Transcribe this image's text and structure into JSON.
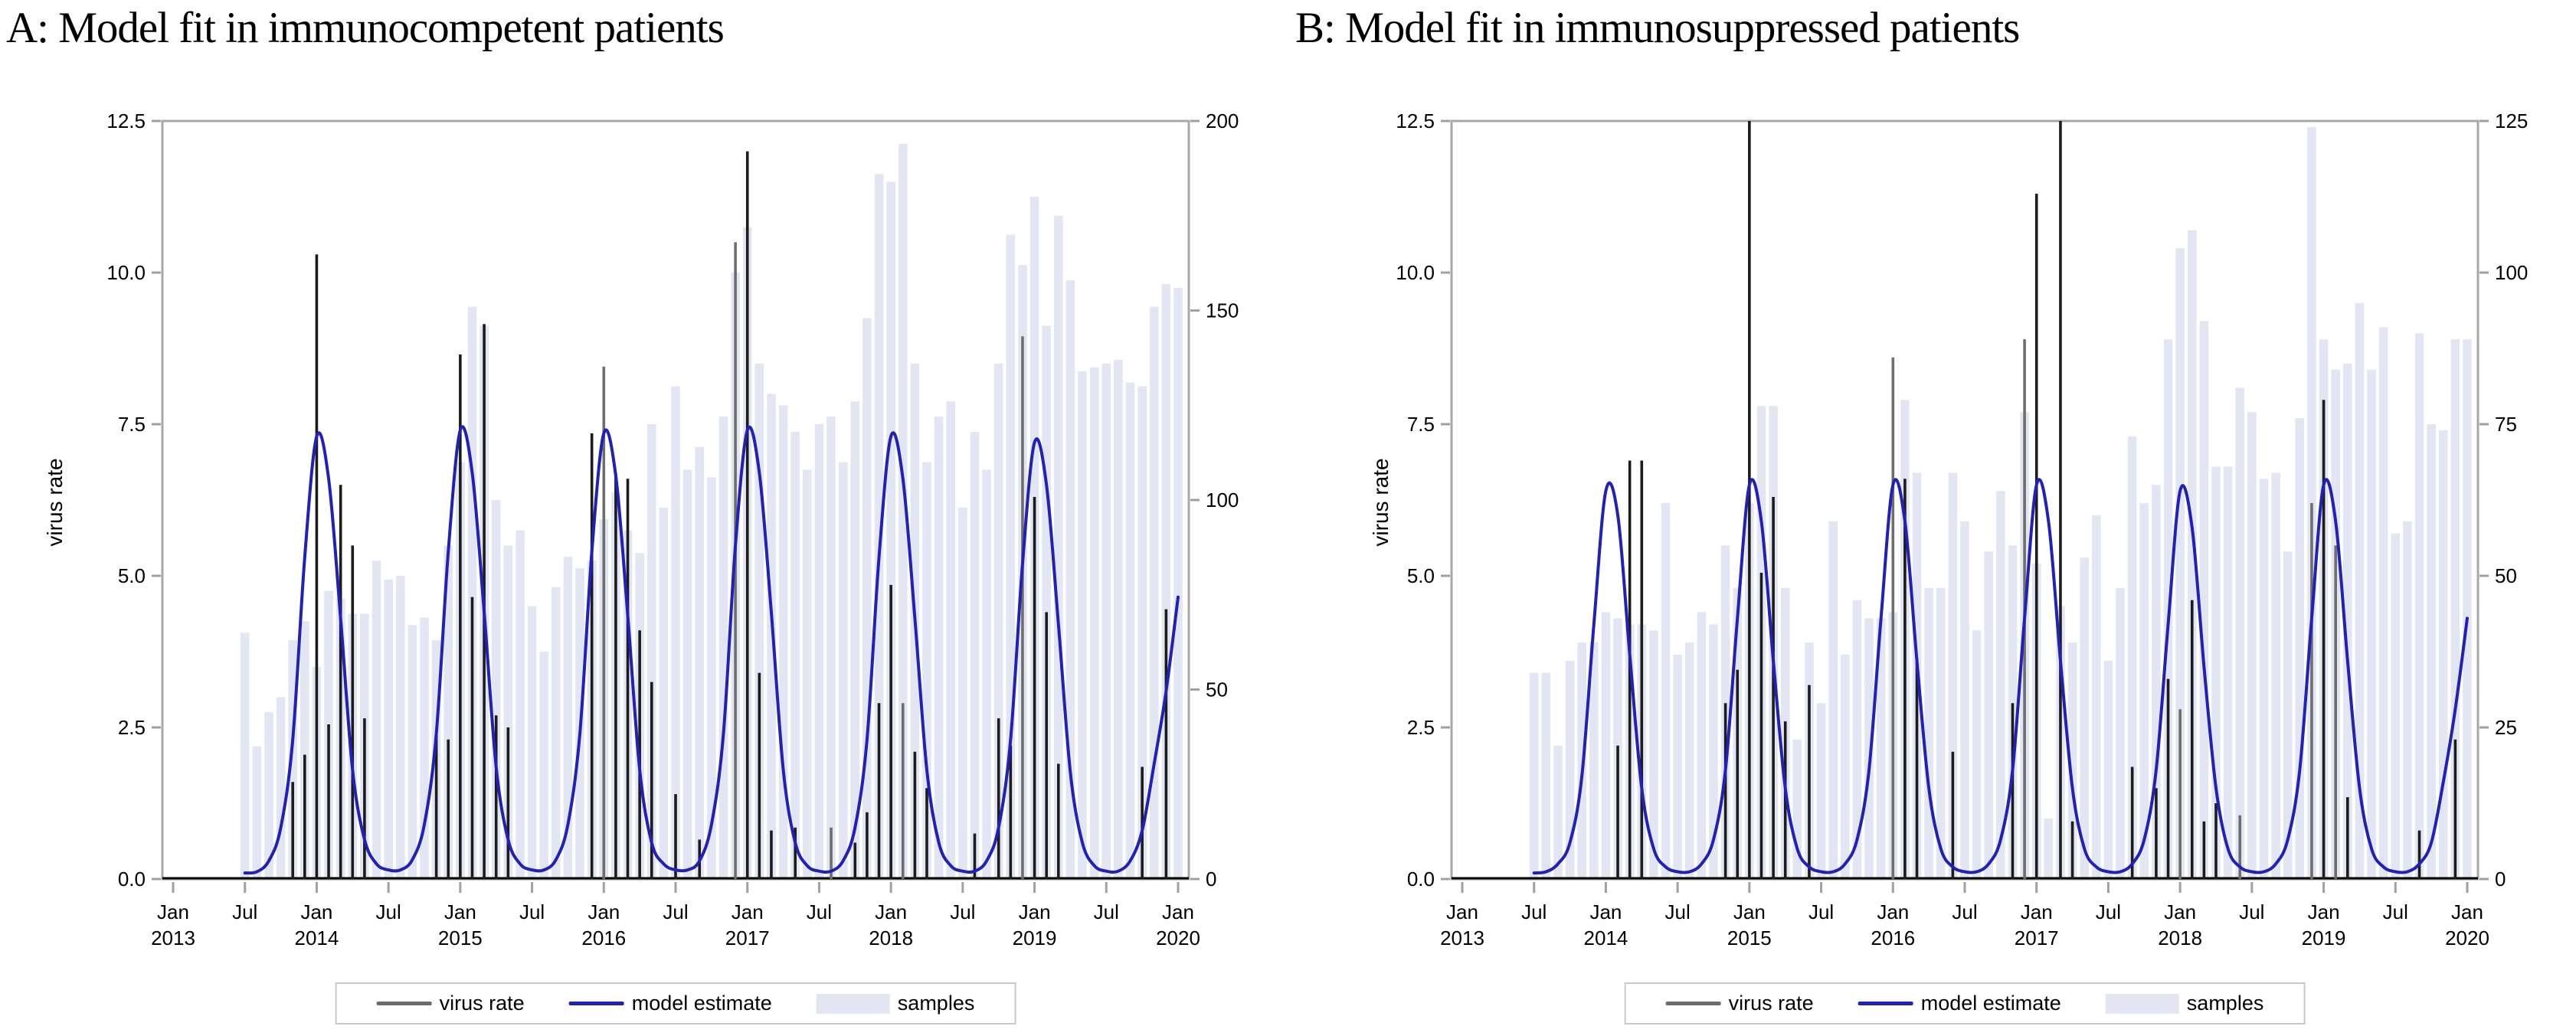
{
  "colors": {
    "samples_bar": "#e2e6f3",
    "model_line": "#2121b8",
    "virus_spike": "#1c1c1c",
    "virus_spike_gray": "#6e6e6e",
    "legend_virus_swatch": "#6b6b6b",
    "frame": "#a7a7a7",
    "tick": "#a0a0a0",
    "baseline": "#000000"
  },
  "chart_data": [
    {
      "type": "bar",
      "panel": "A",
      "title": "A: Model fit in immunocompetent patients",
      "ylabel_left": "virus rate",
      "legend_labels": {
        "virus_rate": "virus rate",
        "model_estimate": "model estimate",
        "samples": "samples"
      },
      "y_left": {
        "ticks": [
          "0.0",
          "2.5",
          "5.0",
          "7.5",
          "10.0",
          "12.5"
        ],
        "max": 12.5
      },
      "y_right": {
        "ticks": [
          "0",
          "50",
          "100",
          "150",
          "200"
        ],
        "max": 200
      },
      "x_range": [
        "Jan 2013",
        "Jan 2020"
      ],
      "x_ticks": [
        {
          "m": 0,
          "line1": "Jan",
          "line2": "2013"
        },
        {
          "m": 6,
          "line1": "Jul",
          "line2": ""
        },
        {
          "m": 12,
          "line1": "Jan",
          "line2": "2014"
        },
        {
          "m": 18,
          "line1": "Jul",
          "line2": ""
        },
        {
          "m": 24,
          "line1": "Jan",
          "line2": "2015"
        },
        {
          "m": 30,
          "line1": "Jul",
          "line2": ""
        },
        {
          "m": 36,
          "line1": "Jan",
          "line2": "2016"
        },
        {
          "m": 42,
          "line1": "Jul",
          "line2": ""
        },
        {
          "m": 48,
          "line1": "Jan",
          "line2": "2017"
        },
        {
          "m": 54,
          "line1": "Jul",
          "line2": ""
        },
        {
          "m": 60,
          "line1": "Jan",
          "line2": "2018"
        },
        {
          "m": 66,
          "line1": "Jul",
          "line2": ""
        },
        {
          "m": 72,
          "line1": "Jan",
          "line2": "2019"
        },
        {
          "m": 78,
          "line1": "Jul",
          "line2": ""
        },
        {
          "m": 84,
          "line1": "Jan",
          "line2": "2020"
        }
      ],
      "series": {
        "samples": [
          null,
          null,
          null,
          null,
          null,
          null,
          65,
          35,
          44,
          48,
          63,
          68,
          56,
          76,
          74,
          70,
          70,
          84,
          79,
          80,
          67,
          69,
          63,
          88,
          110,
          151,
          146,
          100,
          88,
          92,
          72,
          60,
          77,
          85,
          82,
          84,
          95,
          102,
          92,
          86,
          120,
          98,
          130,
          108,
          114,
          106,
          122,
          160,
          172,
          136,
          128,
          125,
          118,
          108,
          120,
          122,
          110,
          126,
          148,
          186,
          184,
          194,
          136,
          110,
          122,
          126,
          98,
          118,
          108,
          136,
          170,
          162,
          180,
          146,
          175,
          158,
          134,
          135,
          136,
          137,
          131,
          130,
          151,
          157,
          156
        ],
        "virus_rate": [
          null,
          null,
          null,
          null,
          null,
          null,
          null,
          null,
          null,
          null,
          1.6,
          2.05,
          10.3,
          2.55,
          6.5,
          5.5,
          2.65,
          null,
          null,
          null,
          null,
          null,
          2.4,
          2.3,
          8.65,
          4.65,
          9.15,
          2.7,
          2.5,
          null,
          null,
          null,
          null,
          null,
          null,
          7.35,
          8.45,
          6.7,
          6.6,
          4.1,
          3.25,
          null,
          1.4,
          null,
          0.65,
          null,
          null,
          10.5,
          12.0,
          3.4,
          0.8,
          null,
          0.85,
          null,
          null,
          0.85,
          null,
          0.6,
          1.1,
          2.9,
          4.85,
          2.9,
          2.1,
          1.5,
          null,
          null,
          null,
          0.75,
          null,
          2.65,
          2.2,
          8.95,
          6.3,
          4.4,
          1.9,
          null,
          null,
          null,
          null,
          null,
          null,
          1.85,
          null,
          4.45,
          null
        ],
        "model_estimate": [
          null,
          null,
          null,
          null,
          null,
          null,
          0.1,
          0.12,
          0.3,
          0.85,
          2.3,
          5.3,
          7.3,
          6.6,
          4.3,
          1.8,
          0.65,
          0.25,
          0.15,
          0.15,
          0.32,
          0.9,
          2.4,
          5.4,
          7.4,
          6.7,
          4.4,
          1.85,
          0.65,
          0.25,
          0.15,
          0.15,
          0.32,
          0.9,
          2.4,
          5.4,
          7.35,
          6.65,
          4.35,
          1.8,
          0.6,
          0.25,
          0.15,
          0.15,
          0.3,
          0.9,
          2.4,
          5.5,
          7.4,
          6.7,
          4.4,
          1.8,
          0.6,
          0.22,
          0.13,
          0.13,
          0.3,
          0.85,
          2.3,
          5.3,
          7.3,
          6.6,
          4.3,
          1.8,
          0.6,
          0.22,
          0.13,
          0.13,
          0.3,
          0.85,
          2.3,
          5.2,
          7.2,
          6.5,
          4.2,
          1.75,
          0.6,
          0.22,
          0.13,
          0.13,
          0.3,
          0.8,
          1.9,
          3.1,
          4.65
        ]
      },
      "gray_spike_months": [
        36,
        47,
        55,
        61,
        71
      ]
    },
    {
      "type": "bar",
      "panel": "B",
      "title": "B: Model fit in immunosuppressed patients",
      "ylabel_left": "virus rate",
      "legend_labels": {
        "virus_rate": "virus rate",
        "model_estimate": "model estimate",
        "samples": "samples"
      },
      "y_left": {
        "ticks": [
          "0.0",
          "2.5",
          "5.0",
          "7.5",
          "10.0",
          "12.5"
        ],
        "max": 12.5
      },
      "y_right": {
        "ticks": [
          "0",
          "25",
          "50",
          "75",
          "100",
          "125"
        ],
        "max": 125
      },
      "x_range": [
        "Jan 2013",
        "Jan 2020"
      ],
      "x_ticks": [
        {
          "m": 0,
          "line1": "Jan",
          "line2": "2013"
        },
        {
          "m": 6,
          "line1": "Jul",
          "line2": ""
        },
        {
          "m": 12,
          "line1": "Jan",
          "line2": "2014"
        },
        {
          "m": 18,
          "line1": "Jul",
          "line2": ""
        },
        {
          "m": 24,
          "line1": "Jan",
          "line2": "2015"
        },
        {
          "m": 30,
          "line1": "Jul",
          "line2": ""
        },
        {
          "m": 36,
          "line1": "Jan",
          "line2": "2016"
        },
        {
          "m": 42,
          "line1": "Jul",
          "line2": ""
        },
        {
          "m": 48,
          "line1": "Jan",
          "line2": "2017"
        },
        {
          "m": 54,
          "line1": "Jul",
          "line2": ""
        },
        {
          "m": 60,
          "line1": "Jan",
          "line2": "2018"
        },
        {
          "m": 66,
          "line1": "Jul",
          "line2": ""
        },
        {
          "m": 72,
          "line1": "Jan",
          "line2": "2019"
        },
        {
          "m": 78,
          "line1": "Jul",
          "line2": ""
        },
        {
          "m": 84,
          "line1": "Jan",
          "line2": "2020"
        }
      ],
      "series": {
        "samples": [
          null,
          null,
          null,
          null,
          null,
          null,
          34,
          34,
          22,
          36,
          39,
          39,
          44,
          43,
          42,
          42,
          41,
          62,
          37,
          39,
          44,
          42,
          55,
          48,
          62,
          78,
          78,
          48,
          23,
          39,
          29,
          59,
          37,
          46,
          43,
          43,
          44,
          79,
          67,
          48,
          48,
          67,
          59,
          41,
          54,
          64,
          55,
          77,
          52,
          10,
          45,
          39,
          53,
          60,
          36,
          48,
          73,
          62,
          65,
          89,
          104,
          107,
          92,
          68,
          68,
          81,
          77,
          66,
          67,
          54,
          76,
          124,
          89,
          84,
          85,
          95,
          84,
          91,
          57,
          59,
          90,
          75,
          74,
          89,
          89
        ],
        "virus_rate": [
          null,
          null,
          null,
          null,
          null,
          null,
          null,
          null,
          null,
          null,
          null,
          null,
          null,
          2.2,
          6.9,
          6.9,
          null,
          null,
          null,
          null,
          null,
          null,
          2.9,
          3.45,
          12.5,
          5.05,
          6.3,
          2.6,
          null,
          3.2,
          null,
          null,
          null,
          null,
          null,
          null,
          8.6,
          6.6,
          3.65,
          null,
          null,
          2.1,
          null,
          null,
          null,
          null,
          2.9,
          8.9,
          11.3,
          null,
          12.5,
          0.95,
          null,
          null,
          null,
          null,
          1.85,
          null,
          1.5,
          3.3,
          2.8,
          4.6,
          0.95,
          1.25,
          null,
          1.05,
          null,
          null,
          null,
          null,
          null,
          6.2,
          7.9,
          5.5,
          1.35,
          null,
          null,
          null,
          null,
          null,
          0.8,
          null,
          null,
          2.3,
          null
        ],
        "model_estimate": [
          null,
          null,
          null,
          null,
          null,
          null,
          0.1,
          0.12,
          0.25,
          0.6,
          1.7,
          4.2,
          6.4,
          6.0,
          3.7,
          1.5,
          0.5,
          0.2,
          0.12,
          0.12,
          0.25,
          0.65,
          1.8,
          4.3,
          6.5,
          5.9,
          3.6,
          1.5,
          0.5,
          0.2,
          0.12,
          0.12,
          0.25,
          0.65,
          1.8,
          4.3,
          6.5,
          5.9,
          3.6,
          1.5,
          0.5,
          0.2,
          0.12,
          0.12,
          0.25,
          0.65,
          1.8,
          4.3,
          6.5,
          5.9,
          3.6,
          1.5,
          0.5,
          0.2,
          0.12,
          0.12,
          0.25,
          0.65,
          1.8,
          4.2,
          6.4,
          5.8,
          3.5,
          1.5,
          0.5,
          0.2,
          0.12,
          0.12,
          0.25,
          0.65,
          1.8,
          4.3,
          6.5,
          5.9,
          3.6,
          1.5,
          0.5,
          0.2,
          0.12,
          0.12,
          0.25,
          0.6,
          1.6,
          2.8,
          4.3
        ]
      },
      "gray_spike_months": [
        36,
        47,
        60,
        65,
        71,
        73
      ]
    }
  ]
}
